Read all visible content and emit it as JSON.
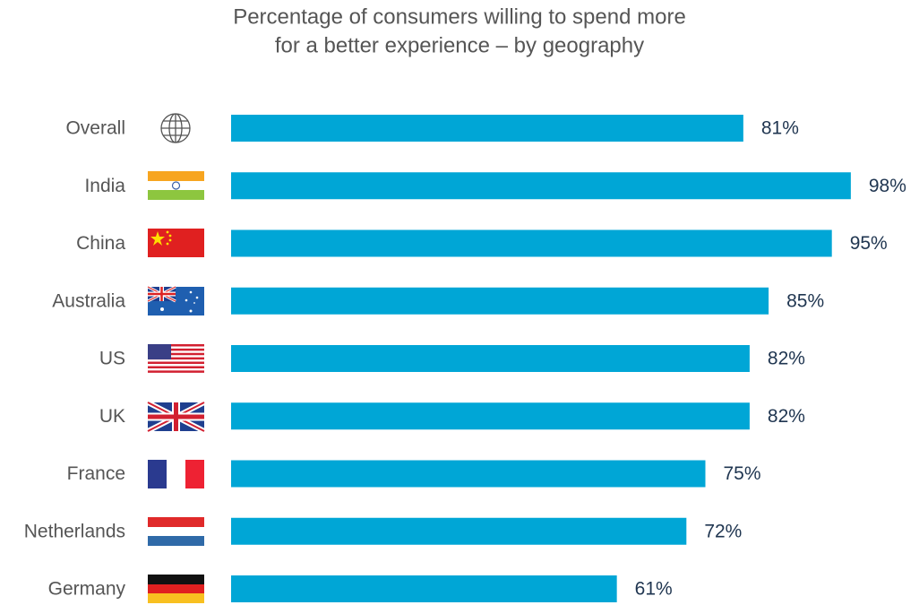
{
  "chart_data": {
    "type": "bar",
    "orientation": "horizontal",
    "title": [
      "Percentage of consumers willing to spend more",
      "for a better experience – by geography"
    ],
    "categories": [
      "Overall",
      "India",
      "China",
      "Australia",
      "US",
      "UK",
      "France",
      "Netherlands",
      "Germany"
    ],
    "values": [
      81,
      98,
      95,
      85,
      82,
      82,
      75,
      72,
      61
    ],
    "value_labels": [
      "81%",
      "98%",
      "95%",
      "85%",
      "82%",
      "82%",
      "75%",
      "72%",
      "61%"
    ],
    "color": "#00a6d6"
  }
}
